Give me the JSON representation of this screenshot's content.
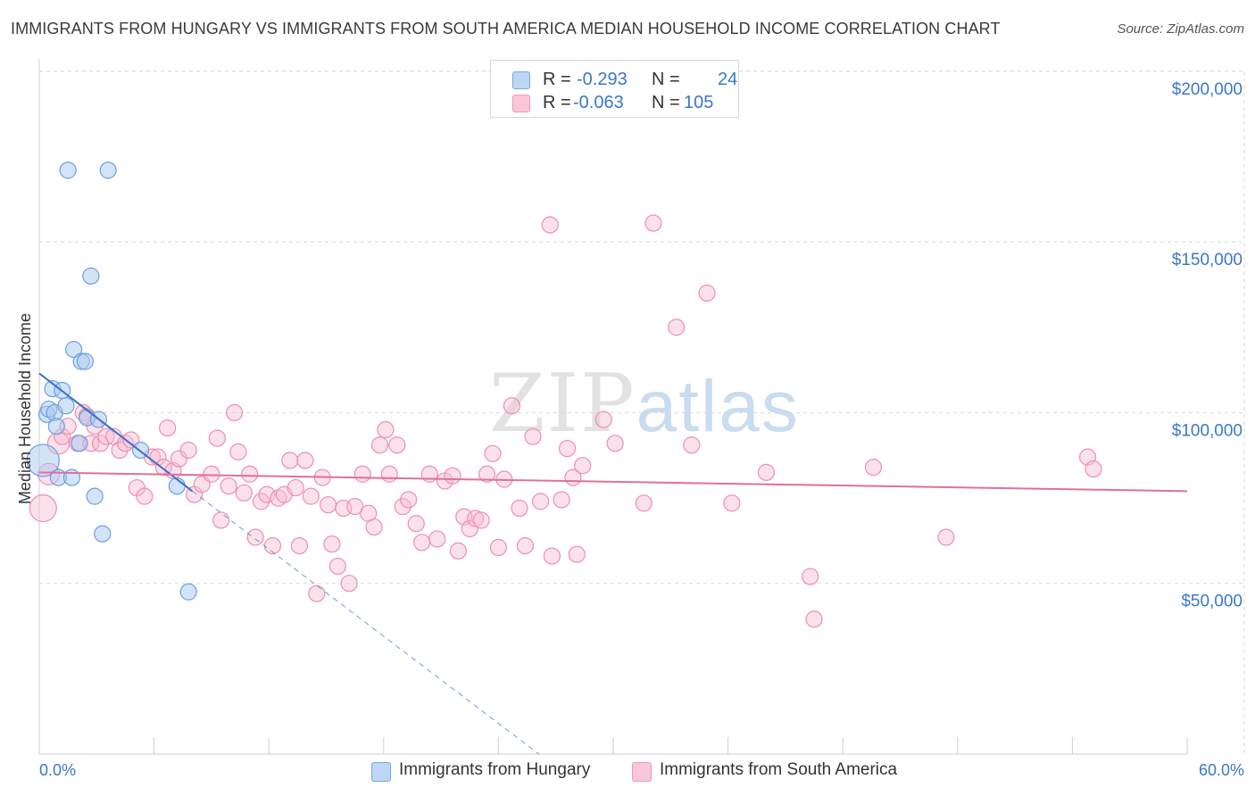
{
  "title": "IMMIGRANTS FROM HUNGARY VS IMMIGRANTS FROM SOUTH AMERICA MEDIAN HOUSEHOLD INCOME CORRELATION CHART",
  "source": "Source: ZipAtlas.com",
  "watermark": {
    "zip": "ZIP",
    "atlas": "atlas"
  },
  "legend": {
    "hungary": {
      "r_label": "R =",
      "r_value": "-0.293",
      "n_label": "N =",
      "n_value": "24"
    },
    "south_america": {
      "r_label": "R =",
      "r_value": "-0.063",
      "n_label": "N =",
      "n_value": "105"
    }
  },
  "colors": {
    "hungary_fill": "#a9c9f0",
    "hungary_stroke": "#6a9fe0",
    "hungary_line": "#3a6fd0",
    "sa_fill": "#f7bcd0",
    "sa_stroke": "#ee8eb0",
    "sa_line": "#e0709a",
    "grid": "#d8d8d8",
    "axis_text": "#3a78c9"
  },
  "chart_data": {
    "type": "scatter",
    "title": "IMMIGRANTS FROM HUNGARY VS IMMIGRANTS FROM SOUTH AMERICA MEDIAN HOUSEHOLD INCOME CORRELATION CHART",
    "xlabel": "",
    "ylabel": "Median Household Income",
    "xlim": [
      0,
      60
    ],
    "ylim": [
      0,
      210000
    ],
    "x_tick_labels": [
      "0.0%",
      "60.0%"
    ],
    "y_ticks": [
      50000,
      100000,
      150000,
      200000
    ],
    "y_tick_labels": [
      "$50,000",
      "$100,000",
      "$150,000",
      "$200,000"
    ],
    "series": [
      {
        "name": "Immigrants from Hungary",
        "points": [
          [
            0.2,
            86000,
            18
          ],
          [
            0.4,
            99500,
            9
          ],
          [
            0.5,
            101000,
            9
          ],
          [
            0.7,
            107000,
            9
          ],
          [
            0.8,
            100000,
            9
          ],
          [
            0.9,
            96000,
            9
          ],
          [
            1.0,
            81000,
            9
          ],
          [
            1.2,
            106500,
            9
          ],
          [
            1.4,
            102000,
            9
          ],
          [
            1.5,
            171000,
            9
          ],
          [
            1.7,
            81000,
            9
          ],
          [
            1.8,
            118500,
            9
          ],
          [
            2.1,
            91000,
            9
          ],
          [
            2.2,
            115000,
            9
          ],
          [
            2.4,
            115000,
            9
          ],
          [
            2.5,
            98500,
            9
          ],
          [
            2.7,
            140000,
            9
          ],
          [
            2.9,
            75500,
            9
          ],
          [
            3.1,
            98000,
            9
          ],
          [
            3.3,
            64500,
            9
          ],
          [
            3.6,
            171000,
            9
          ],
          [
            5.3,
            89000,
            9
          ],
          [
            7.2,
            78500,
            9
          ],
          [
            7.8,
            47500,
            9
          ]
        ],
        "trend": {
          "x0": 0,
          "y0": 111500,
          "x1": 8,
          "y1": 77000,
          "dashed_to_x": 28,
          "dashed_to_y": -8000
        }
      },
      {
        "name": "Immigrants from South America",
        "points": [
          [
            0.2,
            72000,
            15
          ],
          [
            0.5,
            82000,
            12
          ],
          [
            1.0,
            91000,
            12
          ],
          [
            1.2,
            93000,
            9
          ],
          [
            1.5,
            96000,
            9
          ],
          [
            2.0,
            91000,
            9
          ],
          [
            2.3,
            100000,
            9
          ],
          [
            2.5,
            99000,
            9
          ],
          [
            2.7,
            91000,
            9
          ],
          [
            2.9,
            96000,
            9
          ],
          [
            3.2,
            91000,
            9
          ],
          [
            3.5,
            93000,
            9
          ],
          [
            3.9,
            93000,
            9
          ],
          [
            4.2,
            89000,
            9
          ],
          [
            4.5,
            91000,
            9
          ],
          [
            4.8,
            92000,
            9
          ],
          [
            5.1,
            78000,
            9
          ],
          [
            5.5,
            75500,
            9
          ],
          [
            5.9,
            87000,
            9
          ],
          [
            6.2,
            87000,
            9
          ],
          [
            6.5,
            84000,
            9
          ],
          [
            6.7,
            95500,
            9
          ],
          [
            7.0,
            83000,
            9
          ],
          [
            7.3,
            86500,
            9
          ],
          [
            7.8,
            89000,
            9
          ],
          [
            8.1,
            76000,
            9
          ],
          [
            8.5,
            79000,
            9
          ],
          [
            9.0,
            82000,
            9
          ],
          [
            9.3,
            92500,
            9
          ],
          [
            9.5,
            68500,
            9
          ],
          [
            9.9,
            78500,
            9
          ],
          [
            10.2,
            100000,
            9
          ],
          [
            10.4,
            88500,
            9
          ],
          [
            10.7,
            76500,
            9
          ],
          [
            11.0,
            82000,
            9
          ],
          [
            11.3,
            63500,
            9
          ],
          [
            11.6,
            74000,
            9
          ],
          [
            11.9,
            76000,
            9
          ],
          [
            12.2,
            61000,
            9
          ],
          [
            12.5,
            75000,
            9
          ],
          [
            12.8,
            76000,
            9
          ],
          [
            13.1,
            86000,
            9
          ],
          [
            13.4,
            78000,
            9
          ],
          [
            13.6,
            61000,
            9
          ],
          [
            13.9,
            86000,
            9
          ],
          [
            14.2,
            75500,
            9
          ],
          [
            14.5,
            47000,
            9
          ],
          [
            14.8,
            81000,
            9
          ],
          [
            15.1,
            73000,
            9
          ],
          [
            15.3,
            61500,
            9
          ],
          [
            15.6,
            55000,
            9
          ],
          [
            15.9,
            72000,
            9
          ],
          [
            16.2,
            50000,
            9
          ],
          [
            16.5,
            72500,
            9
          ],
          [
            16.9,
            82000,
            9
          ],
          [
            17.2,
            70500,
            9
          ],
          [
            17.5,
            66500,
            9
          ],
          [
            17.8,
            90500,
            9
          ],
          [
            18.1,
            95000,
            9
          ],
          [
            18.3,
            82000,
            9
          ],
          [
            18.7,
            90500,
            9
          ],
          [
            19.0,
            72500,
            9
          ],
          [
            19.3,
            74500,
            9
          ],
          [
            19.7,
            67500,
            9
          ],
          [
            20.0,
            62000,
            9
          ],
          [
            20.4,
            82000,
            9
          ],
          [
            20.8,
            63000,
            9
          ],
          [
            21.2,
            80000,
            9
          ],
          [
            21.6,
            81500,
            9
          ],
          [
            21.9,
            59500,
            9
          ],
          [
            22.2,
            69500,
            9
          ],
          [
            22.5,
            66000,
            9
          ],
          [
            22.8,
            69000,
            9
          ],
          [
            23.1,
            68500,
            9
          ],
          [
            23.4,
            82000,
            9
          ],
          [
            23.7,
            88000,
            9
          ],
          [
            24.0,
            60500,
            9
          ],
          [
            24.3,
            80500,
            9
          ],
          [
            24.7,
            102000,
            9
          ],
          [
            25.1,
            72000,
            9
          ],
          [
            25.4,
            61000,
            9
          ],
          [
            25.8,
            93000,
            9
          ],
          [
            26.2,
            74000,
            9
          ],
          [
            26.8,
            58000,
            9
          ],
          [
            27.3,
            74500,
            9
          ],
          [
            27.6,
            89500,
            9
          ],
          [
            27.9,
            81000,
            9
          ],
          [
            28.1,
            58500,
            9
          ],
          [
            28.4,
            84500,
            9
          ],
          [
            29.5,
            98000,
            9
          ],
          [
            30.1,
            91000,
            9
          ],
          [
            31.6,
            73500,
            9
          ],
          [
            32.1,
            155500,
            9
          ],
          [
            33.3,
            125000,
            9
          ],
          [
            34.1,
            90500,
            9
          ],
          [
            34.9,
            135000,
            9
          ],
          [
            36.2,
            73500,
            9
          ],
          [
            38.0,
            82500,
            9
          ],
          [
            40.3,
            52000,
            9
          ],
          [
            40.5,
            39500,
            9
          ],
          [
            43.6,
            84000,
            9
          ],
          [
            47.4,
            63500,
            9
          ],
          [
            54.8,
            87000,
            9
          ],
          [
            55.1,
            83500,
            9
          ],
          [
            26.7,
            155000,
            9
          ]
        ],
        "trend": {
          "x0": 0,
          "y0": 82500,
          "x1": 60,
          "y1": 77000
        }
      }
    ]
  }
}
